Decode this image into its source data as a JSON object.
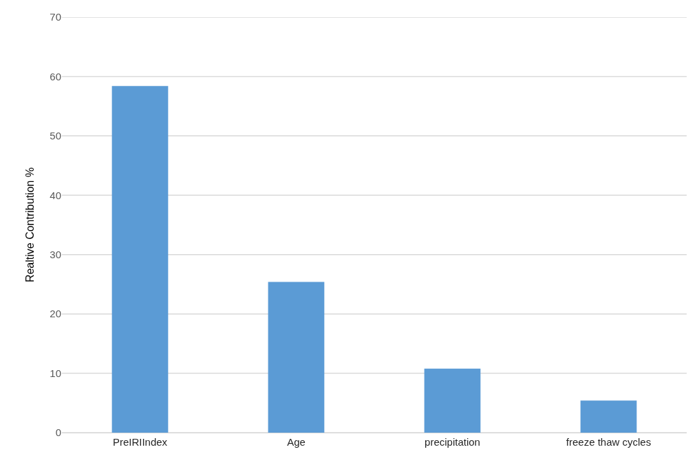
{
  "chart_data": {
    "type": "bar",
    "ylabel": "Realtive Contribution %",
    "categories": [
      "PreIRIIndex",
      "Age",
      "precipitation",
      "freeze thaw cycles"
    ],
    "values": [
      58.4,
      25.4,
      10.8,
      5.4
    ],
    "color": "#5b9bd5",
    "ylim": [
      0,
      70
    ],
    "yticks": [
      0,
      10,
      20,
      30,
      40,
      50,
      60,
      70
    ],
    "grid": "y"
  }
}
